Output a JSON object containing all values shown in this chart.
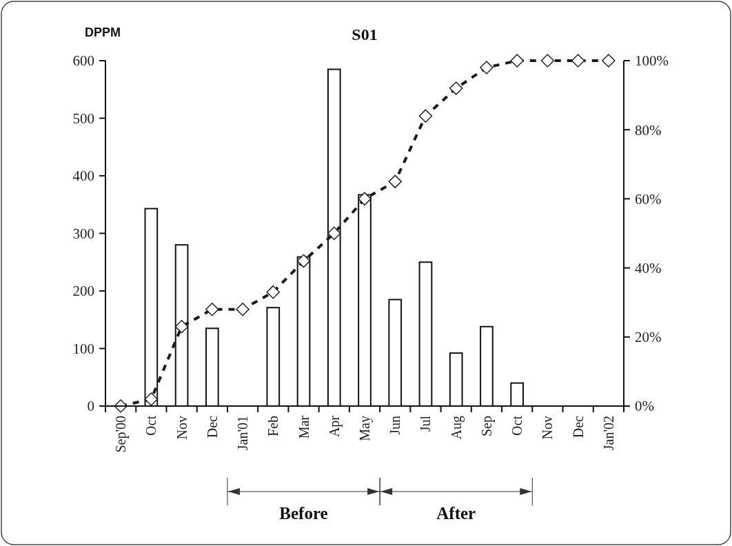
{
  "chart_data": {
    "type": "bar",
    "title": "S01",
    "ylabel": "DPPM",
    "categories": [
      "Sep'00",
      "Oct",
      "Nov",
      "Dec",
      "Jan'01",
      "Feb",
      "Mar",
      "Apr",
      "May",
      "Jun",
      "Jul",
      "Aug",
      "Sep",
      "Oct",
      "Nov",
      "Dec",
      "Jan'02"
    ],
    "series": [
      {
        "color": "#ffffff",
        "values": [
          0,
          343,
          280,
          135,
          0,
          171,
          259,
          585,
          367,
          185,
          250,
          92,
          138,
          40,
          0,
          0,
          0
        ]
      },
      {
        "type": "line",
        "axis": "y2",
        "color": "#1a1a1a",
        "marker": "diamond",
        "line_style": "dashed",
        "values": [
          0,
          2,
          23,
          28,
          28,
          33,
          42,
          50,
          60,
          65,
          84,
          92,
          98,
          100,
          100,
          100,
          100
        ]
      }
    ],
    "ylim": [
      0,
      600
    ],
    "yticks": [
      0,
      100,
      200,
      300,
      400,
      500,
      600
    ],
    "y2lim": [
      0,
      100
    ],
    "y2ticks": [
      {
        "value": 0,
        "label": "0%"
      },
      {
        "value": 20,
        "label": "20%"
      },
      {
        "value": 40,
        "label": "40%"
      },
      {
        "value": 60,
        "label": "60%"
      },
      {
        "value": 80,
        "label": "80%"
      },
      {
        "value": 100,
        "label": "100%"
      }
    ],
    "annotations": [
      "Before",
      "After"
    ],
    "grid": false
  }
}
